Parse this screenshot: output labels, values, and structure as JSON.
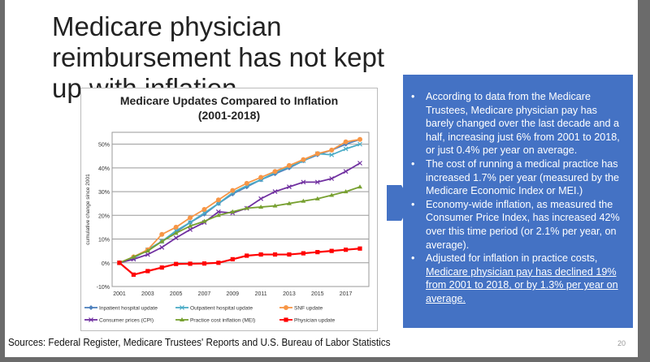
{
  "title": "Medicare physician reimbursement has not kept up with inflation",
  "bullets": [
    {
      "text": "According to data from the Medicare Trustees, Medicare physician pay has barely changed over the last decade and a half, increasing just 6% from 2001 to 2018, or just 0.4% per year on average."
    },
    {
      "text": "The cost of running a medical practice has increased 1.7% per year (measured by the Medicare Economic Index or MEI.)"
    },
    {
      "text": "Economy-wide inflation, as measured the Consumer Price Index, has increased 42% over this time period (or 2.1% per year, on average)."
    },
    {
      "text": "Adjusted for inflation in practice costs,",
      "underlined": "Medicare physician pay has declined 19% from 2001 to 2018, or by 1.3% per year on average."
    }
  ],
  "sources": "Sources:  Federal Register, Medicare Trustees' Reports and U.S. Bureau of Labor Statistics",
  "page_number": "20",
  "colors": {
    "box": "#4472c4"
  },
  "chart_data": {
    "type": "line",
    "title": "Medicare Updates Compared to Inflation",
    "subtitle": "(2001-2018)",
    "ylabel": "cumulative change since 2001",
    "xlabel": "",
    "ylim": [
      -10,
      55
    ],
    "yticks": [
      -10,
      0,
      10,
      20,
      30,
      40,
      50
    ],
    "ytick_labels": [
      "-10%",
      "0%",
      "10%",
      "20%",
      "30%",
      "40%",
      "50%"
    ],
    "xtick_labels": [
      "2001",
      "2003",
      "2005",
      "2007",
      "2009",
      "2011",
      "2013",
      "2015",
      "2017"
    ],
    "grid": true,
    "legend": "bottom",
    "x": [
      2001,
      2002,
      2003,
      2004,
      2005,
      2006,
      2007,
      2008,
      2009,
      2010,
      2011,
      2012,
      2013,
      2014,
      2015,
      2016,
      2017,
      2018
    ],
    "series": [
      {
        "name": "Inpatient hospital update",
        "color": "#4f81bd",
        "marker": "diamond",
        "values": [
          0,
          2,
          5.5,
          9,
          13,
          17,
          20.5,
          25,
          29,
          32,
          35,
          37.5,
          40,
          43,
          45.5,
          47.5,
          50,
          52
        ]
      },
      {
        "name": "Outpatient hospital update",
        "color": "#4bacc6",
        "marker": "x",
        "values": [
          0,
          2,
          5.5,
          9,
          13.5,
          17,
          21,
          25,
          29.5,
          32.5,
          35,
          38,
          40.5,
          43,
          46,
          45.5,
          48,
          50
        ]
      },
      {
        "name": "SNF update",
        "color": "#f79646",
        "marker": "circle",
        "values": [
          0,
          2.5,
          5.5,
          12,
          15,
          19,
          22.5,
          26.5,
          30.5,
          33.5,
          36,
          38.5,
          41,
          43.5,
          46,
          47.5,
          51,
          52
        ]
      },
      {
        "name": "Consumer prices (CPI)",
        "color": "#7030a0",
        "marker": "x",
        "values": [
          0,
          1.5,
          3.5,
          6.5,
          10.5,
          14,
          17,
          21.5,
          21,
          23,
          27,
          30,
          32,
          34,
          34,
          35.5,
          38.5,
          42
        ]
      },
      {
        "name": "Practice cost inflation (MEI)",
        "color": "#77a030",
        "marker": "triangle",
        "values": [
          0,
          2.5,
          5,
          9,
          12.5,
          15.5,
          17.5,
          20,
          21.5,
          23,
          23.5,
          24,
          25,
          26,
          27,
          28.5,
          30,
          32
        ]
      },
      {
        "name": "Physician update",
        "color": "#ff0000",
        "marker": "square",
        "values": [
          0,
          -5,
          -3.5,
          -2,
          -0.5,
          -0.4,
          -0.3,
          0,
          1.5,
          3,
          3.5,
          3.5,
          3.5,
          4,
          4.5,
          5,
          5.5,
          6
        ]
      }
    ]
  }
}
